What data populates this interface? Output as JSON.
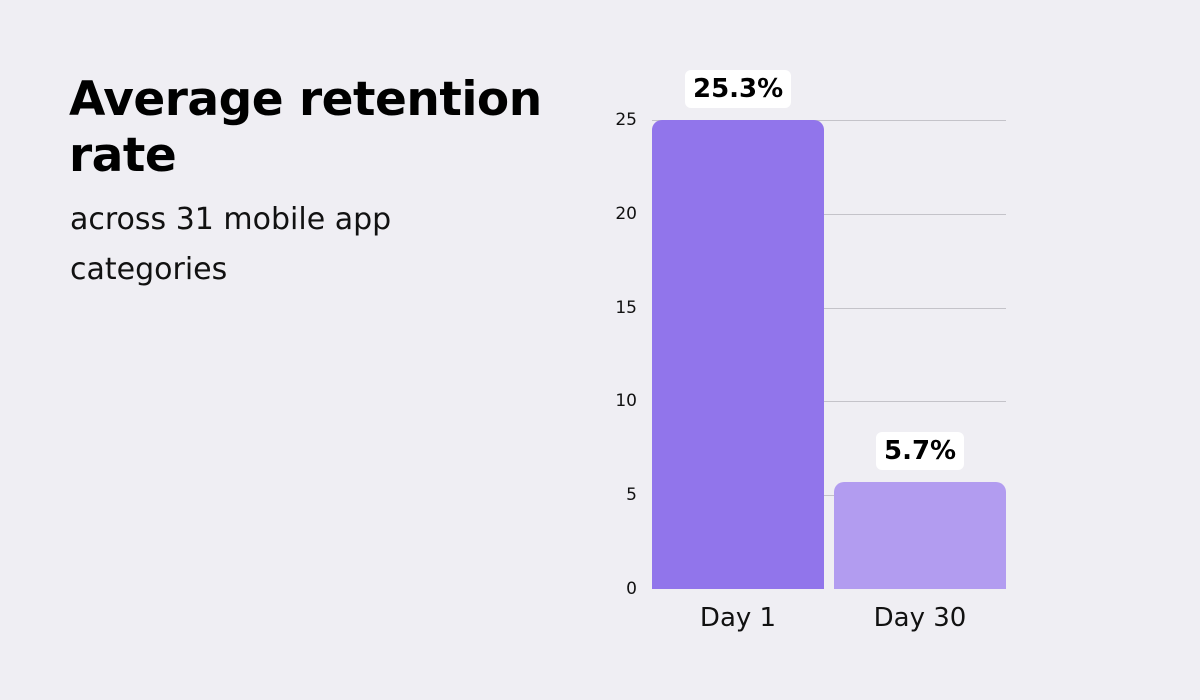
{
  "header": {
    "title": "Average retention rate",
    "subtitle": "across 31 mobile app categories"
  },
  "colors": {
    "background": "#efeef3",
    "day1_bar": "#9175eb",
    "day30_bar": "#b29cf0",
    "gridline": "#c4c3c9",
    "label_box": "#ffffff"
  },
  "chart_data": {
    "type": "bar",
    "title": "Average retention rate",
    "subtitle": "across 31 mobile app categories",
    "categories": [
      "Day 1",
      "Day 30"
    ],
    "values": [
      25.3,
      5.7
    ],
    "data_labels": [
      "25.3%",
      "5.7%"
    ],
    "xlabel": "",
    "ylabel": "",
    "ylim": [
      0,
      25
    ],
    "yticks": [
      0,
      5,
      10,
      15,
      20,
      25
    ],
    "grid": true,
    "legend": "none"
  },
  "axis": {
    "yticks": [
      "0",
      "5",
      "10",
      "15",
      "20",
      "25"
    ]
  }
}
